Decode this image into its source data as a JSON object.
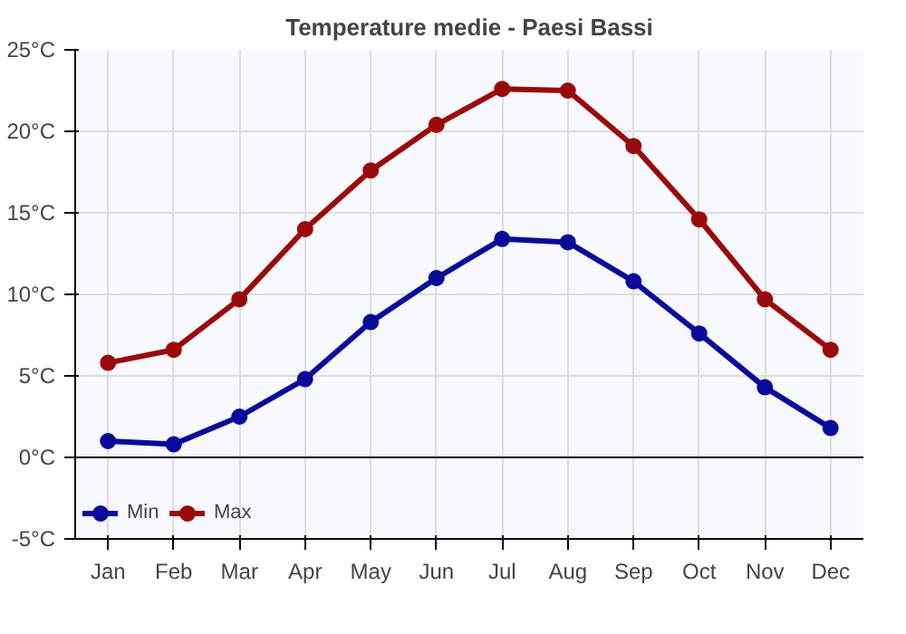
{
  "chart_data": {
    "type": "line",
    "title": "Temperature medie - Paesi Bassi",
    "categories": [
      "Jan",
      "Feb",
      "Mar",
      "Apr",
      "May",
      "Jun",
      "Jul",
      "Aug",
      "Sep",
      "Oct",
      "Nov",
      "Dec"
    ],
    "series": [
      {
        "name": "Min",
        "color": "#0a0a9a",
        "values": [
          1.0,
          0.8,
          2.5,
          4.8,
          8.3,
          11.0,
          13.4,
          13.2,
          10.8,
          7.6,
          4.3,
          1.8
        ]
      },
      {
        "name": "Max",
        "color": "#9a0a0a",
        "values": [
          5.8,
          6.6,
          9.7,
          14.0,
          17.6,
          20.4,
          22.6,
          22.5,
          19.1,
          14.6,
          9.7,
          6.6
        ]
      }
    ],
    "ylim": [
      -5,
      25
    ],
    "yticks": [
      {
        "value": -5,
        "label": "-5°C"
      },
      {
        "value": 0,
        "label": "0°C"
      },
      {
        "value": 5,
        "label": "5°C"
      },
      {
        "value": 10,
        "label": "10°C"
      },
      {
        "value": 15,
        "label": "15°C"
      },
      {
        "value": 20,
        "label": "20°C"
      },
      {
        "value": 25,
        "label": "25°C"
      }
    ],
    "ref_lines": [
      {
        "axis": "y",
        "value": 0,
        "color": "#000000"
      }
    ],
    "grid": true,
    "legend": "bottom left",
    "marker": "circle",
    "line_style": "solid"
  }
}
